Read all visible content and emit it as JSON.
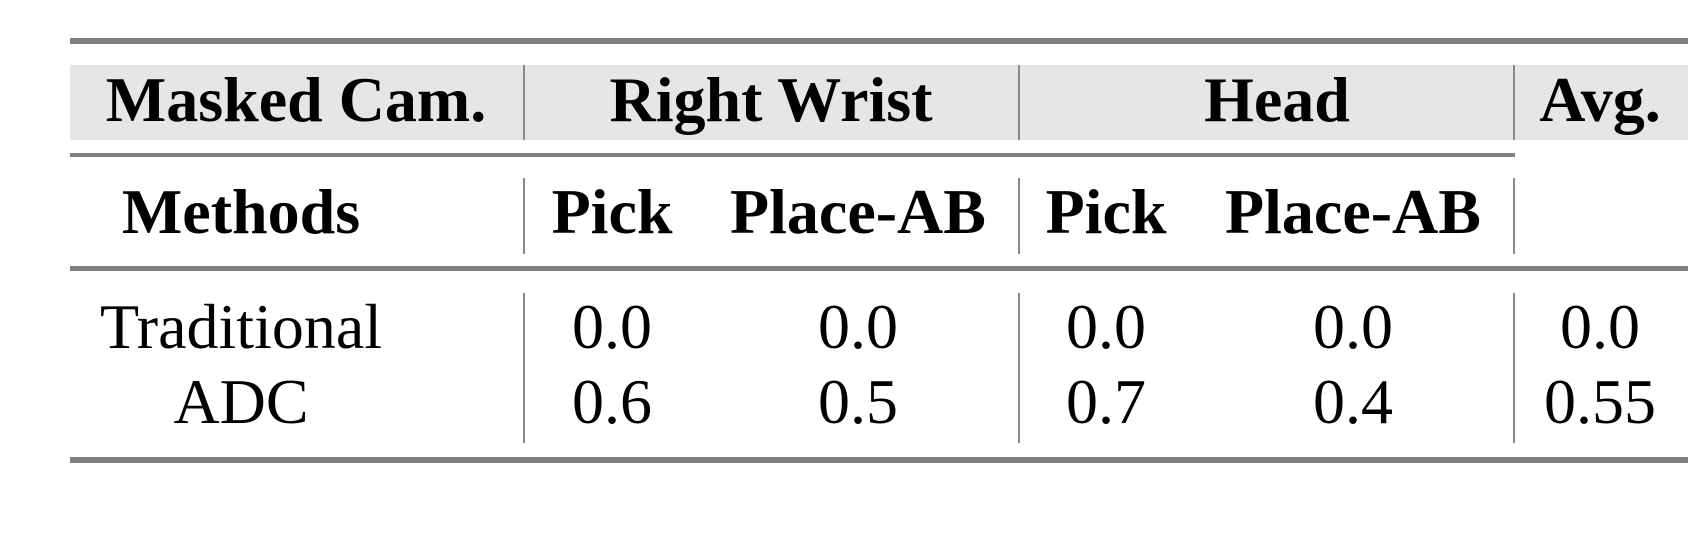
{
  "table": {
    "header_top": {
      "masked_cam": "Masked Cam.",
      "groups": [
        "Right Wrist",
        "Head"
      ],
      "avg": "Avg."
    },
    "header_sub": {
      "methods": "Methods",
      "tasks": [
        "Pick",
        "Place-AB",
        "Pick",
        "Place-AB"
      ]
    },
    "rows": [
      {
        "method": "Traditional",
        "values": [
          "0.0",
          "0.0",
          "0.0",
          "0.0"
        ],
        "avg": "0.0"
      },
      {
        "method": "ADC",
        "values": [
          "0.6",
          "0.5",
          "0.7",
          "0.4"
        ],
        "avg": "0.55"
      }
    ],
    "colors": {
      "header_band": "#e6e6e6",
      "rules": "#808080"
    }
  }
}
